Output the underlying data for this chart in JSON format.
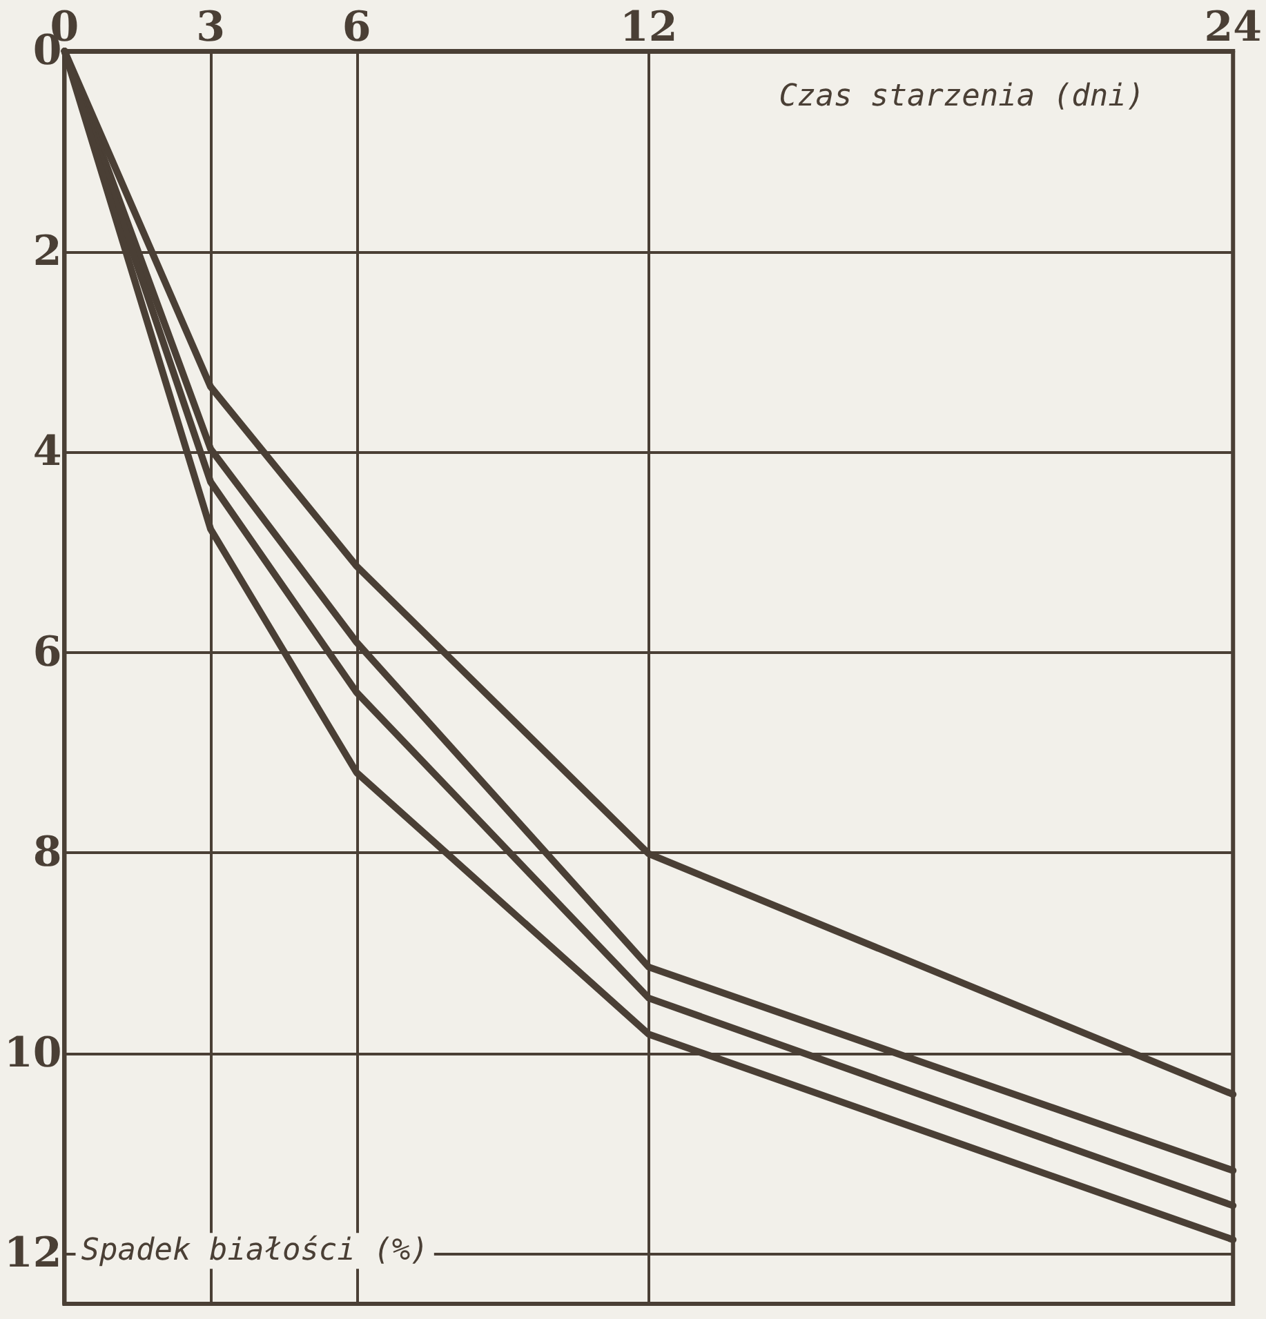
{
  "chart_data": {
    "type": "line",
    "xlabel": "Czas starzenia (dni)",
    "ylabel": "Spadek białości (%)",
    "x": [
      0,
      3,
      6,
      12,
      24
    ],
    "series": [
      {
        "color": "#4a3f35",
        "values": [
          0,
          3.35,
          5.14,
          8.01,
          10.41
        ]
      },
      {
        "color": "#4a3f35",
        "values": [
          0,
          3.97,
          5.9,
          9.14,
          11.17
        ]
      },
      {
        "color": "#4a3f35",
        "values": [
          0,
          4.3,
          6.4,
          9.45,
          11.52
        ]
      },
      {
        "color": "#4a3f35",
        "values": [
          0,
          4.77,
          7.2,
          9.81,
          11.86
        ]
      }
    ],
    "xlim": [
      0,
      24
    ],
    "xticks": [
      0,
      3,
      6,
      12,
      24
    ],
    "ylim": [
      12.5,
      0
    ],
    "yticks": [
      0,
      2,
      4,
      6,
      8,
      10,
      12
    ],
    "grid": true,
    "marker": "none",
    "line_style": "solid"
  }
}
